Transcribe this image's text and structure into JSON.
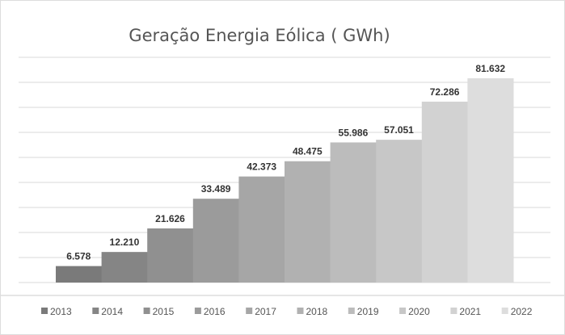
{
  "chart_data": {
    "type": "bar",
    "title": "Geração Energia Eólica ( GWh)",
    "categories": [
      "2013",
      "2014",
      "2015",
      "2016",
      "2017",
      "2018",
      "2019",
      "2020",
      "2021",
      "2022"
    ],
    "values": [
      6.578,
      12.21,
      21.626,
      33.489,
      42.373,
      48.475,
      55.986,
      57.051,
      72.286,
      81.632
    ],
    "data_labels": [
      "6.578",
      "12.210",
      "21.626",
      "33.489",
      "42.373",
      "48.475",
      "55.986",
      "57.051",
      "72.286",
      "81.632"
    ],
    "ylim": [
      0,
      90
    ],
    "grid": true,
    "legend": "bottom",
    "colors": [
      "#7a7a7a",
      "#858585",
      "#909090",
      "#9b9b9b",
      "#a6a6a6",
      "#b1b1b1",
      "#bcbcbc",
      "#c7c7c7",
      "#d2d2d2",
      "#dddddd"
    ]
  }
}
